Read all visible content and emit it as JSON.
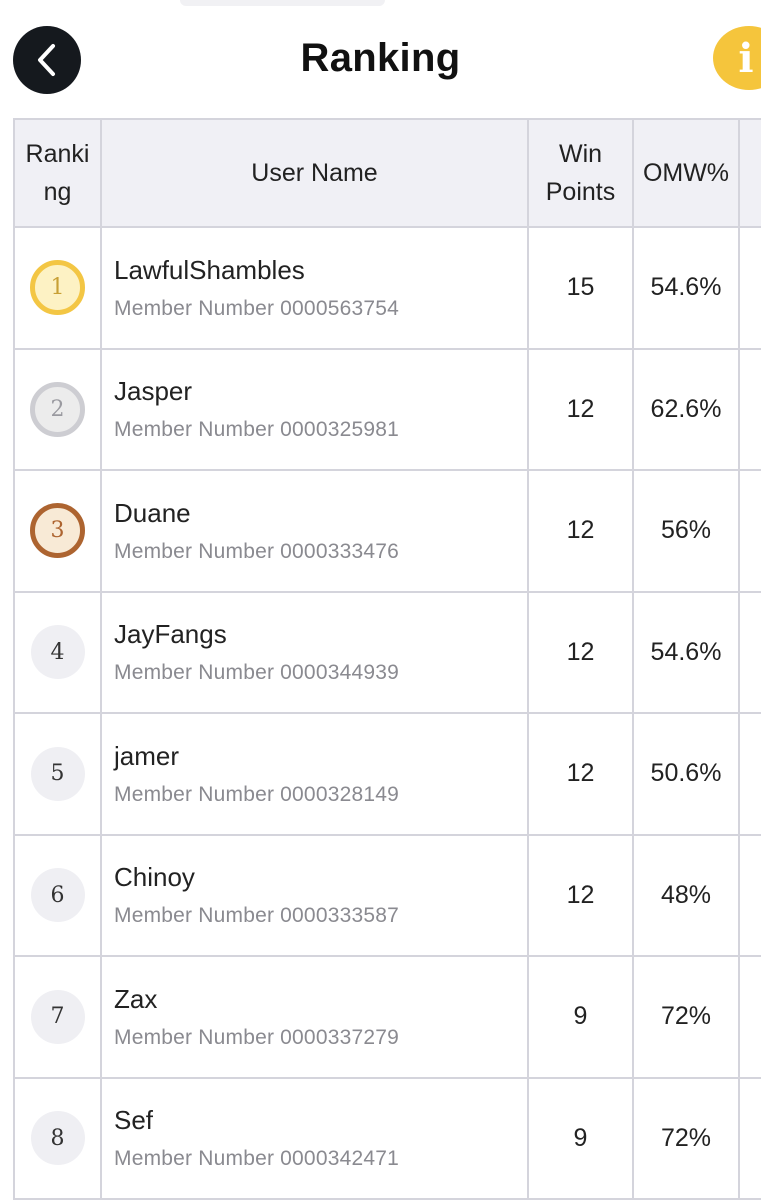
{
  "header": {
    "title": "Ranking"
  },
  "columns": {
    "rank": "Ranking",
    "name": "User Name",
    "win": "Win Points",
    "omw": "OMW%"
  },
  "rows": [
    {
      "rank": "1",
      "name": "LawfulShambles",
      "member": "Member Number 0000563754",
      "win": "15",
      "omw": "54.6%"
    },
    {
      "rank": "2",
      "name": "Jasper",
      "member": "Member Number 0000325981",
      "win": "12",
      "omw": "62.6%"
    },
    {
      "rank": "3",
      "name": "Duane",
      "member": "Member Number 0000333476",
      "win": "12",
      "omw": "56%"
    },
    {
      "rank": "4",
      "name": "JayFangs",
      "member": "Member Number 0000344939",
      "win": "12",
      "omw": "54.6%"
    },
    {
      "rank": "5",
      "name": "jamer",
      "member": "Member Number 0000328149",
      "win": "12",
      "omw": "50.6%"
    },
    {
      "rank": "6",
      "name": "Chinoy",
      "member": "Member Number 0000333587",
      "win": "12",
      "omw": "48%"
    },
    {
      "rank": "7",
      "name": "Zax",
      "member": "Member Number 0000337279",
      "win": "9",
      "omw": "72%"
    },
    {
      "rank": "8",
      "name": "Sef",
      "member": "Member Number 0000342471",
      "win": "9",
      "omw": "72%"
    }
  ],
  "icons": {
    "back": "chevron-left-icon",
    "info": "info-icon"
  },
  "colors": {
    "gold": "#f3c644",
    "silver": "#cdcdd2",
    "bronze": "#ad6430",
    "info": "#f5c53c",
    "back": "#15191e"
  }
}
